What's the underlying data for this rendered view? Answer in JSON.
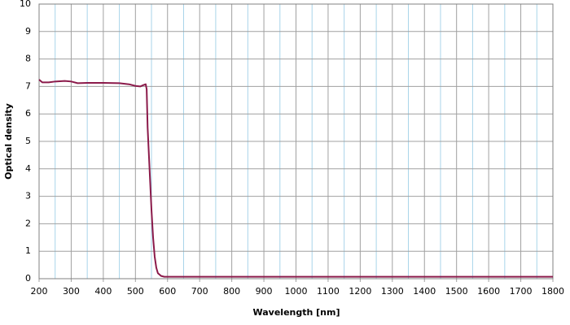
{
  "chart_data": {
    "type": "line",
    "xlabel": "Wavelength [nm]",
    "ylabel": "Optical density",
    "x": [
      200,
      210,
      230,
      250,
      280,
      300,
      320,
      350,
      400,
      450,
      480,
      500,
      515,
      525,
      532,
      535,
      538,
      542,
      546,
      550,
      555,
      560,
      565,
      570,
      580,
      590,
      600,
      800,
      1000,
      1200,
      1400,
      1600,
      1800
    ],
    "series": [
      {
        "color": "#8b1a4a",
        "values": [
          7.25,
          7.15,
          7.15,
          7.18,
          7.2,
          7.18,
          7.12,
          7.13,
          7.13,
          7.12,
          7.08,
          7.02,
          7.0,
          7.05,
          7.08,
          6.9,
          5.5,
          4.5,
          3.5,
          2.5,
          1.5,
          0.8,
          0.4,
          0.2,
          0.1,
          0.07,
          0.07,
          0.07,
          0.07,
          0.07,
          0.07,
          0.07,
          0.07
        ]
      }
    ],
    "xlim": [
      200,
      1800
    ],
    "ylim": [
      0,
      10
    ],
    "xticks": [
      200,
      300,
      400,
      500,
      600,
      700,
      800,
      900,
      1000,
      1100,
      1200,
      1300,
      1400,
      1500,
      1600,
      1700,
      1800
    ],
    "xminorticks": [
      250,
      350,
      450,
      550,
      650,
      750,
      850,
      950,
      1050,
      1150,
      1250,
      1350,
      1450,
      1550,
      1650,
      1750
    ],
    "yticks": [
      0,
      1,
      2,
      3,
      4,
      5,
      6,
      7,
      8,
      9,
      10
    ],
    "grid": true,
    "grid_color": "#a0a0a0",
    "minor_grid_color": "#a8d4ea"
  }
}
